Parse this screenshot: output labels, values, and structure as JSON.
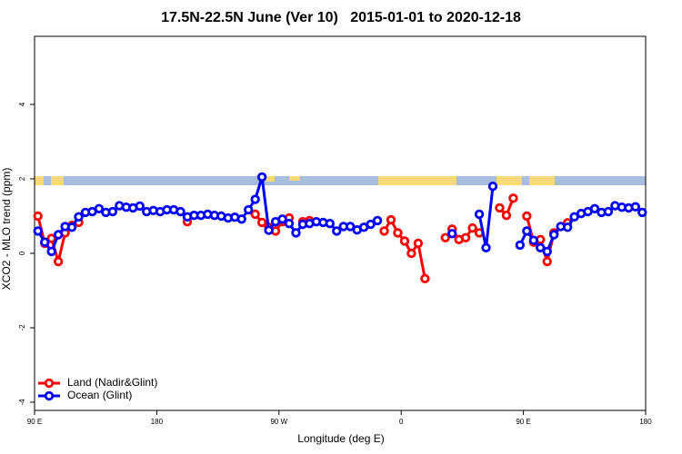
{
  "chart_data": {
    "type": "line",
    "title": "17.5N-22.5N June (Ver 10)   2015-01-01 to 2020-12-18",
    "x_label": "Longitude (deg E)",
    "y_label": "XCO2 - MLO trend (ppm)",
    "x": [
      92.5,
      97.5,
      102.5,
      107.5,
      112.5,
      117.5,
      122.5,
      127.5,
      132.5,
      137.5,
      142.5,
      147.5,
      152.5,
      157.5,
      162.5,
      167.5,
      172.5,
      177.5,
      182.5,
      187.5,
      192.5,
      197.5,
      202.5,
      207.5,
      212.5,
      217.5,
      222.5,
      227.5,
      232.5,
      237.5,
      242.5,
      247.5,
      252.5,
      257.5,
      262.5,
      267.5,
      272.5,
      277.5,
      282.5,
      287.5,
      292.5,
      297.5,
      302.5,
      307.5,
      312.5,
      317.5,
      322.5,
      327.5,
      332.5,
      337.5,
      342.5,
      347.5,
      352.5,
      357.5,
      362.5,
      367.5,
      372.5,
      377.5,
      382.5,
      387.5,
      392.5,
      397.5,
      402.5,
      407.5,
      412.5,
      417.5,
      422.5,
      427.5,
      432.5,
      437.5,
      442.5,
      447.5,
      452.5,
      457.5,
      462.5,
      467.5,
      472.5,
      477.5,
      482.5,
      487.5,
      492.5,
      497.5,
      502.5,
      507.5,
      512.5,
      517.5,
      522.5,
      527.5,
      532.5,
      537.5
    ],
    "series": [
      {
        "name": "Land (Nadir&Glint)",
        "color": "#ff0000",
        "values": [
          1.0,
          0.27,
          0.4,
          -0.22,
          0.55,
          0.75,
          0.83,
          null,
          null,
          null,
          null,
          null,
          null,
          null,
          null,
          null,
          null,
          null,
          null,
          null,
          null,
          null,
          0.85,
          null,
          null,
          null,
          null,
          null,
          null,
          null,
          null,
          null,
          1.05,
          0.83,
          0.7,
          0.6,
          0.85,
          0.95,
          null,
          0.85,
          0.88,
          null,
          null,
          null,
          null,
          null,
          null,
          null,
          null,
          null,
          null,
          0.6,
          0.9,
          0.55,
          0.33,
          0.0,
          0.27,
          -0.68,
          null,
          null,
          0.42,
          0.65,
          0.37,
          0.42,
          0.68,
          0.55,
          null,
          null,
          1.22,
          1.02,
          1.48,
          null,
          1.0,
          0.3,
          0.37,
          -0.22,
          0.55,
          null,
          0.82,
          null,
          null,
          null,
          null,
          null,
          null,
          null,
          null,
          null,
          null,
          null
        ]
      },
      {
        "name": "Ocean (Glint)",
        "color": "#0000ff",
        "values": [
          0.6,
          0.3,
          0.05,
          0.5,
          0.72,
          0.7,
          0.98,
          1.1,
          1.12,
          1.2,
          1.1,
          1.12,
          1.28,
          1.24,
          1.22,
          1.27,
          1.12,
          1.15,
          1.12,
          1.17,
          1.17,
          1.12,
          0.98,
          1.02,
          1.02,
          1.05,
          1.02,
          1.0,
          0.95,
          0.97,
          0.92,
          1.17,
          1.45,
          2.05,
          0.62,
          0.85,
          0.92,
          0.8,
          0.55,
          0.78,
          0.8,
          0.85,
          0.83,
          0.8,
          0.6,
          0.72,
          0.72,
          0.63,
          0.7,
          0.78,
          0.88,
          null,
          null,
          null,
          null,
          null,
          null,
          null,
          null,
          null,
          null,
          0.53,
          null,
          null,
          null,
          1.05,
          0.15,
          1.8,
          null,
          null,
          null,
          0.22,
          0.6,
          0.35,
          0.15,
          0.05,
          0.5,
          0.72,
          0.7,
          0.98,
          1.07,
          1.12,
          1.2,
          1.1,
          1.12,
          1.28,
          1.24,
          1.22,
          1.25,
          1.1
        ]
      }
    ],
    "xlim": [
      90,
      540
    ],
    "xticks": [
      {
        "value": 90,
        "label": "90 E"
      },
      180,
      {
        "value": 270,
        "label": "90 W"
      },
      {
        "value": 360,
        "label": "0"
      },
      {
        "value": 450,
        "label": "90 E"
      },
      {
        "value": 540,
        "label": "180"
      }
    ],
    "ylim": [
      -4.22,
      5.83
    ],
    "yticks": [
      -4,
      -2,
      0,
      2,
      4
    ],
    "legend": "bottom-left"
  }
}
